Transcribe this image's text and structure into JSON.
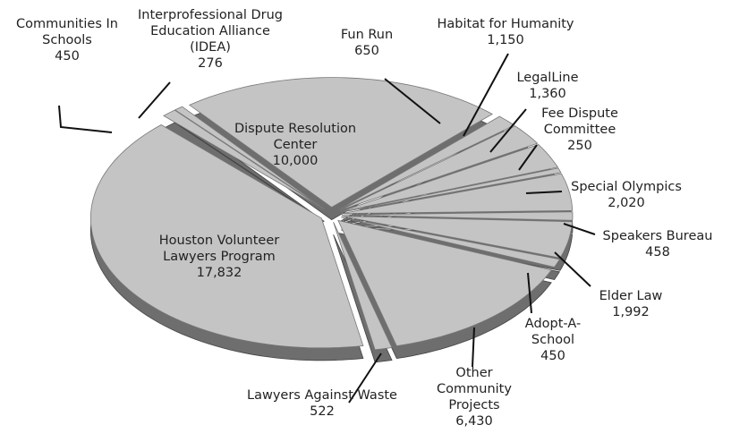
{
  "chart_data": {
    "type": "pie",
    "categories": [
      "Dispute Resolution Center",
      "Fun Run",
      "Habitat for Humanity",
      "LegalLine",
      "Fee Dispute Committee",
      "Special Olympics",
      "Speakers Bureau",
      "Elder Law",
      "Adopt-A-School",
      "Other Community Projects",
      "Lawyers Against Waste",
      "Houston Volunteer Lawyers Program",
      "Communities In Schools",
      "Interprofessional Drug Education Alliance (IDEA)"
    ],
    "values": [
      10000,
      650,
      1150,
      1360,
      250,
      2020,
      458,
      1992,
      450,
      6430,
      522,
      17832,
      450,
      276
    ],
    "value_labels": [
      "10,000",
      "650",
      "1,150",
      "1,360",
      "250",
      "2,020",
      "458",
      "1,992",
      "450",
      "6,430",
      "522",
      "17,832",
      "450",
      "276"
    ],
    "color": "#c4c4c4"
  }
}
